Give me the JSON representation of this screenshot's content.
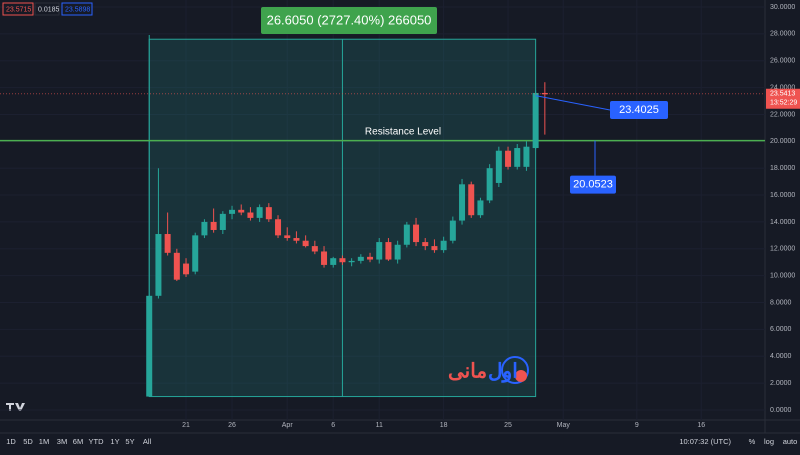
{
  "chart_data": {
    "type": "candlestick",
    "x": [
      17,
      18,
      19,
      20,
      21,
      22,
      23,
      24,
      25,
      26,
      27,
      28,
      29,
      30,
      31,
      32,
      33,
      34,
      35,
      36,
      37,
      38,
      39,
      40,
      41,
      42,
      43,
      44,
      45,
      46,
      47,
      48,
      49,
      50,
      51,
      52,
      53,
      54,
      55,
      56,
      57,
      58,
      59,
      60
    ],
    "open": [
      1.0,
      8.5,
      13.1,
      11.7,
      10.9,
      10.3,
      13.0,
      14.0,
      13.4,
      14.6,
      14.9,
      14.7,
      14.3,
      15.1,
      14.2,
      13.0,
      12.8,
      12.6,
      12.2,
      11.8,
      10.8,
      11.3,
      11.0,
      11.1,
      11.4,
      11.2,
      12.5,
      11.2,
      12.3,
      13.8,
      12.5,
      12.2,
      11.9,
      12.6,
      14.1,
      16.8,
      14.5,
      15.6,
      16.9,
      19.3,
      18.1,
      18.1,
      19.5,
      23.6
    ],
    "high": [
      8.5,
      18.0,
      14.7,
      12.0,
      11.3,
      13.2,
      14.2,
      15.0,
      14.8,
      15.2,
      15.3,
      15.1,
      15.3,
      15.4,
      14.5,
      13.6,
      13.3,
      13.0,
      12.6,
      12.2,
      11.4,
      11.5,
      11.3,
      11.6,
      11.7,
      12.8,
      12.8,
      12.6,
      14.0,
      14.3,
      12.8,
      12.7,
      12.9,
      14.4,
      17.2,
      17.0,
      15.8,
      18.3,
      19.6,
      19.6,
      19.8,
      20.0,
      23.8,
      24.4
    ],
    "low": [
      1.0,
      8.3,
      11.5,
      9.6,
      9.9,
      10.1,
      12.8,
      13.2,
      13.1,
      14.2,
      14.5,
      14.1,
      14.0,
      14.0,
      12.8,
      12.6,
      12.4,
      12.1,
      11.6,
      10.6,
      10.6,
      10.8,
      10.7,
      10.9,
      11.0,
      10.9,
      11.1,
      10.9,
      12.1,
      12.2,
      11.9,
      11.7,
      11.7,
      12.4,
      13.8,
      14.3,
      14.3,
      15.4,
      16.6,
      17.9,
      17.9,
      17.8,
      19.4,
      20.5
    ],
    "close": [
      8.5,
      13.1,
      11.7,
      9.7,
      10.1,
      13.0,
      14.0,
      13.4,
      14.6,
      14.9,
      14.7,
      14.3,
      15.1,
      14.2,
      13.0,
      12.8,
      12.6,
      12.2,
      11.8,
      10.8,
      11.3,
      11.0,
      11.1,
      11.4,
      11.2,
      12.5,
      11.2,
      12.3,
      13.8,
      12.5,
      12.2,
      11.9,
      12.6,
      14.1,
      16.8,
      14.5,
      15.6,
      18.0,
      19.3,
      18.1,
      19.5,
      19.6,
      23.6,
      23.5
    ],
    "up_color": "#26a69a",
    "down_color": "#ef5350",
    "xlim": [
      0.78,
      83.93
    ],
    "xticks": [
      21,
      26,
      {
        "value": 32,
        "label": "Apr"
      },
      {
        "value": 37,
        "label": "6"
      },
      {
        "value": 42,
        "label": "11"
      },
      {
        "value": 49,
        "label": "18"
      },
      {
        "value": 56,
        "label": "25"
      },
      {
        "value": 62,
        "label": "May"
      },
      {
        "value": 70,
        "label": "9"
      },
      {
        "value": 77,
        "label": "16"
      }
    ],
    "ylim": [
      -0.745,
      30.52
    ],
    "yticks": [
      {
        "value": 0,
        "label": "0.0000"
      },
      {
        "value": 2,
        "label": "2.0000"
      },
      {
        "value": 4,
        "label": "4.0000"
      },
      {
        "value": 6,
        "label": "6.0000"
      },
      {
        "value": 8,
        "label": "8.0000"
      },
      {
        "value": 10,
        "label": "10.0000"
      },
      {
        "value": 12,
        "label": "12.0000"
      },
      {
        "value": 14,
        "label": "14.0000"
      },
      {
        "value": 16,
        "label": "16.0000"
      },
      {
        "value": 18,
        "label": "18.0000"
      },
      {
        "value": 20,
        "label": "20.0000"
      },
      {
        "value": 22,
        "label": "22.0000"
      },
      {
        "value": 24,
        "label": "24.0000"
      },
      {
        "value": 26,
        "label": "26.0000"
      },
      {
        "value": 28,
        "label": "28.0000"
      },
      {
        "value": 30,
        "label": "30.0000"
      }
    ],
    "grid": true,
    "measure": {
      "text": "26.6050 (2727.40%) 266050",
      "x": [
        17,
        59
      ],
      "y": [
        1.0,
        27.6
      ],
      "color": "#26a69a"
    },
    "resistance": {
      "text": "Resistance Level",
      "value": 20.0523,
      "label": "20.0523",
      "color": "#4caf50"
    },
    "callout": {
      "value": 23.4025,
      "label": "23.4025"
    },
    "last_price": {
      "value": 23.5413,
      "label": "23.5413",
      "countdown": "13:52:29"
    },
    "ohlc_legend": [
      "23.5715",
      "0.0185",
      "23.5898"
    ],
    "brand": [
      "اول",
      "مانی"
    ]
  },
  "toolbar": {
    "timeframes": [
      "1D",
      "5D",
      "1M",
      "3M",
      "6M",
      "YTD",
      "1Y",
      "5Y",
      "All"
    ],
    "clock": "10:07:32 (UTC)",
    "options": [
      "%",
      "log",
      "auto"
    ]
  }
}
